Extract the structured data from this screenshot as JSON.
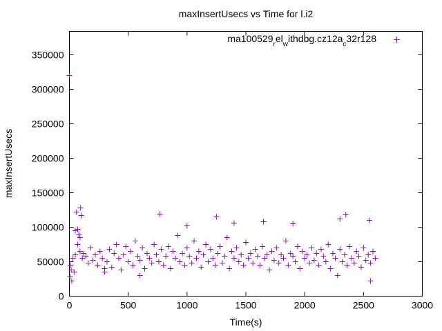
{
  "chart_data": {
    "type": "scatter",
    "title": "maxInsertUsecs vs Time for l.i2",
    "xlabel": "Time(s)",
    "ylabel": "maxInsertUsecs",
    "xlim": [
      0,
      3000
    ],
    "ylim": [
      0,
      384000
    ],
    "xticks": [
      0,
      500,
      1000,
      1500,
      2000,
      2500,
      3000
    ],
    "yticks": [
      0,
      50000,
      100000,
      150000,
      200000,
      250000,
      300000,
      350000
    ],
    "grid": false,
    "legend_position": "top-right",
    "series": [
      {
        "name_parts": [
          "ma100529",
          "r",
          "el",
          "w",
          "ithdbg.cz12a",
          "c",
          "32r128"
        ],
        "name": "ma100529_rel_withdbg.cz12a_c32r128",
        "color": "#9400d3",
        "x": [
          0,
          5,
          10,
          15,
          20,
          30,
          40,
          50,
          60,
          70,
          80,
          90,
          95,
          100,
          110,
          120,
          140,
          160,
          180,
          200,
          220,
          240,
          260,
          280,
          300,
          320,
          340,
          360,
          380,
          400,
          420,
          440,
          460,
          480,
          500,
          520,
          540,
          560,
          580,
          600,
          620,
          640,
          660,
          680,
          700,
          720,
          740,
          760,
          780,
          800,
          820,
          840,
          860,
          880,
          900,
          920,
          940,
          960,
          980,
          1000,
          1020,
          1040,
          1060,
          1080,
          1100,
          1120,
          1140,
          1160,
          1180,
          1200,
          1220,
          1240,
          1260,
          1280,
          1300,
          1320,
          1340,
          1360,
          1380,
          1400,
          1420,
          1440,
          1460,
          1480,
          1500,
          1520,
          1540,
          1560,
          1580,
          1600,
          1620,
          1640,
          1660,
          1680,
          1700,
          1720,
          1740,
          1760,
          1780,
          1800,
          1820,
          1840,
          1860,
          1880,
          1900,
          1920,
          1940,
          1960,
          1980,
          2000,
          2020,
          2040,
          2060,
          2080,
          2100,
          2120,
          2140,
          2160,
          2180,
          2200,
          2220,
          2240,
          2260,
          2280,
          2300,
          2320,
          2340,
          2360,
          2380,
          2400,
          2420,
          2440,
          2460,
          2480,
          2500,
          2520,
          2540,
          2560,
          2580,
          2600,
          50,
          90,
          70,
          300,
          600,
          770,
          1250,
          1650,
          1900,
          2300,
          2350,
          2550,
          2560,
          1000,
          1400
        ],
        "y": [
          320000,
          28000,
          45000,
          38000,
          22000,
          55000,
          35000,
          60000,
          122000,
          75000,
          90000,
          65000,
          128000,
          117000,
          55000,
          62000,
          58000,
          48000,
          70000,
          52000,
          60000,
          45000,
          65000,
          55000,
          35000,
          50000,
          68000,
          42000,
          62000,
          75000,
          55000,
          38000,
          60000,
          72000,
          50000,
          65000,
          45000,
          80000,
          58000,
          52000,
          70000,
          40000,
          62000,
          55000,
          48000,
          75000,
          60000,
          50000,
          68000,
          45000,
          58000,
          72000,
          40000,
          65000,
          55000,
          88000,
          50000,
          62000,
          45000,
          70000,
          58000,
          48000,
          80000,
          55000,
          65000,
          42000,
          60000,
          75000,
          50000,
          68000,
          55000,
          45000,
          62000,
          72000,
          48000,
          58000,
          85000,
          40000,
          65000,
          55000,
          70000,
          50000,
          60000,
          45000,
          78000,
          55000,
          62000,
          48000,
          68000,
          58000,
          45000,
          72000,
          55000,
          60000,
          38000,
          65000,
          52000,
          70000,
          48000,
          60000,
          55000,
          80000,
          45000,
          62000,
          58000,
          50000,
          72000,
          40000,
          65000,
          55000,
          60000,
          48000,
          70000,
          52000,
          62000,
          45000,
          68000,
          58000,
          50000,
          75000,
          40000,
          62000,
          55000,
          30000,
          68000,
          50000,
          60000,
          45000,
          72000,
          55000,
          48000,
          65000,
          58000,
          42000,
          70000,
          52000,
          60000,
          48000,
          65000,
          55000,
          95000,
          85000,
          97000,
          40000,
          30000,
          119000,
          115000,
          108000,
          105000,
          112000,
          118000,
          110000,
          22000,
          102000,
          106000
        ]
      }
    ]
  }
}
